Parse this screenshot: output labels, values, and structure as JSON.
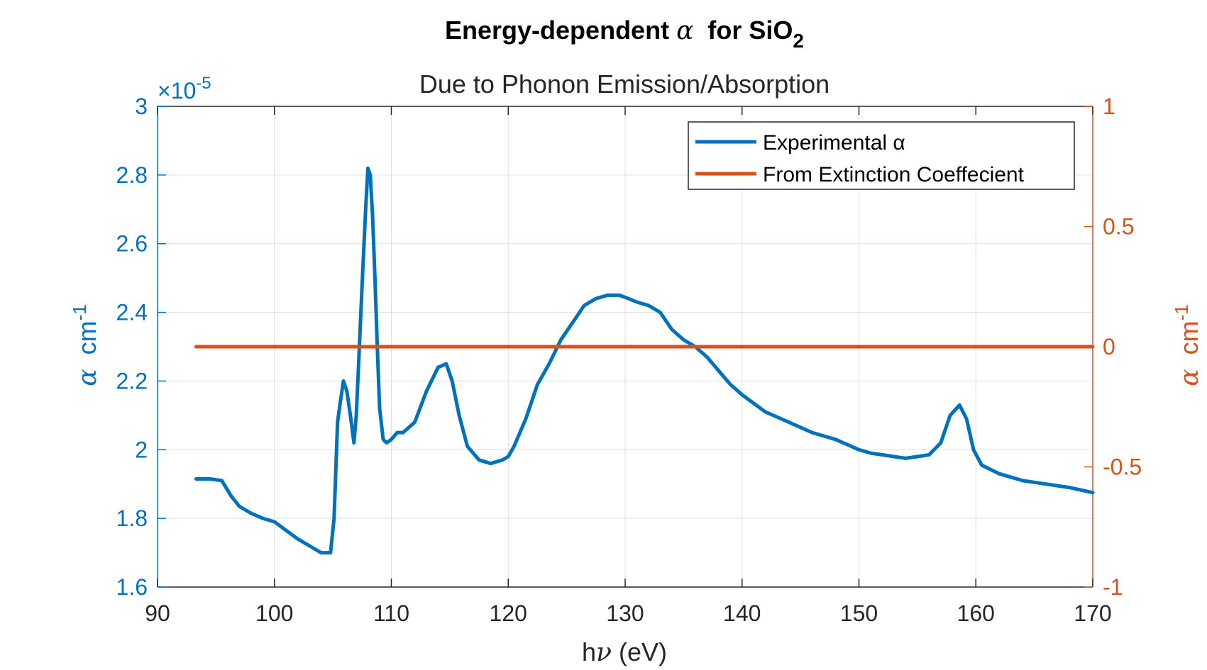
{
  "chart_data": {
    "type": "line",
    "title": "Energy-dependent α  for SiO2",
    "title_parts": {
      "prefix": "Energy-dependent ",
      "alpha": "α",
      "mid": "  for SiO",
      "subscript": "2"
    },
    "subtitle": "Due to Phonon Emission/Absorption",
    "xlabel": {
      "prefix": "h",
      "nu": "ν",
      "suffix": " (eV)"
    },
    "ylabel_left": {
      "alpha": "α",
      "unit": "cm",
      "exp": "-1"
    },
    "ylabel_right": {
      "alpha": "α",
      "unit": "cm",
      "exp": "-1"
    },
    "multiplier": {
      "times": "×",
      "base": "10",
      "exp": "-5"
    },
    "xlim": [
      90,
      170
    ],
    "ylim_left": [
      1.6,
      3.0
    ],
    "ylim_right": [
      -1,
      1
    ],
    "x_ticks": [
      "90",
      "100",
      "110",
      "120",
      "130",
      "140",
      "150",
      "160",
      "170"
    ],
    "y_ticks_left": [
      "1.6",
      "1.8",
      "2",
      "2.2",
      "2.4",
      "2.6",
      "2.8",
      "3"
    ],
    "y_ticks_right": [
      "-1",
      "-0.5",
      "0",
      "0.5",
      "1"
    ],
    "grid": true,
    "legend_position": "top-right",
    "colors": {
      "left_axis": "#0072BD",
      "right_axis": "#D95319",
      "grid": "#DFDFDF",
      "axis_dark": "#262626"
    },
    "series": [
      {
        "name": "Experimental α",
        "axis": "left",
        "color": "#0072BD",
        "x": [
          93.3,
          94.5,
          95.5,
          96.3,
          97.0,
          98.0,
          99.0,
          100.0,
          101.0,
          102.0,
          103.0,
          104.0,
          104.8,
          105.1,
          105.4,
          105.6,
          105.9,
          106.2,
          106.5,
          106.8,
          107.0,
          107.2,
          107.5,
          107.8,
          108.0,
          108.2,
          108.4,
          108.6,
          108.8,
          109.0,
          109.3,
          109.6,
          110.0,
          110.5,
          111.0,
          112.0,
          113.0,
          114.0,
          114.7,
          115.2,
          115.8,
          116.5,
          117.5,
          118.5,
          119.5,
          120.0,
          120.5,
          121.5,
          122.5,
          123.5,
          124.5,
          125.5,
          126.5,
          127.5,
          128.5,
          129.5,
          130.3,
          131.0,
          132.0,
          133.0,
          134.0,
          135.0,
          136.0,
          137.0,
          138.0,
          139.0,
          140.0,
          142.0,
          144.0,
          146.0,
          148.0,
          150.0,
          151.0,
          152.0,
          153.0,
          154.0,
          155.0,
          156.0,
          157.0,
          157.8,
          158.6,
          159.2,
          159.8,
          160.5,
          162.0,
          164.0,
          166.0,
          168.0,
          170.0
        ],
        "y": [
          1.915,
          1.915,
          1.91,
          1.865,
          1.835,
          1.815,
          1.8,
          1.79,
          1.765,
          1.74,
          1.72,
          1.7,
          1.7,
          1.8,
          2.08,
          2.13,
          2.2,
          2.17,
          2.1,
          2.02,
          2.1,
          2.25,
          2.48,
          2.7,
          2.82,
          2.8,
          2.68,
          2.5,
          2.3,
          2.12,
          2.03,
          2.02,
          2.03,
          2.05,
          2.05,
          2.08,
          2.17,
          2.24,
          2.25,
          2.2,
          2.1,
          2.01,
          1.97,
          1.96,
          1.97,
          1.98,
          2.01,
          2.09,
          2.19,
          2.25,
          2.32,
          2.37,
          2.42,
          2.44,
          2.45,
          2.45,
          2.44,
          2.43,
          2.42,
          2.4,
          2.35,
          2.32,
          2.3,
          2.27,
          2.23,
          2.19,
          2.16,
          2.11,
          2.08,
          2.05,
          2.03,
          2.0,
          1.99,
          1.985,
          1.98,
          1.975,
          1.98,
          1.985,
          2.02,
          2.1,
          2.13,
          2.09,
          2.0,
          1.955,
          1.93,
          1.91,
          1.9,
          1.89,
          1.875
        ]
      },
      {
        "name": "From Extinction Coeffecient",
        "axis": "right",
        "color": "#D95319",
        "x": [
          93.3,
          170.0
        ],
        "y": [
          0,
          0
        ]
      }
    ]
  }
}
